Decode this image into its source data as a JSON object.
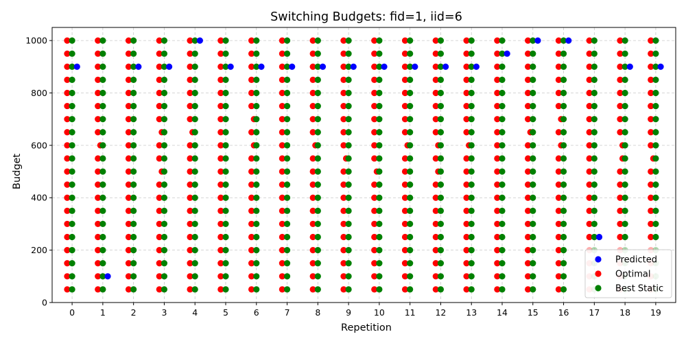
{
  "chart_data": {
    "type": "scatter",
    "title": "Switching Budgets: fid=1, iid=6",
    "xlabel": "Repetition",
    "ylabel": "Budget",
    "xlim": [
      -0.65,
      19.65
    ],
    "ylim": [
      0,
      1050
    ],
    "x_ticks": [
      0,
      1,
      2,
      3,
      4,
      5,
      6,
      7,
      8,
      9,
      10,
      11,
      12,
      13,
      14,
      15,
      16,
      17,
      18,
      19
    ],
    "y_ticks": [
      0,
      200,
      400,
      600,
      800,
      1000
    ],
    "grid": true,
    "legend_position": "lower-right",
    "budget_levels": [
      50,
      100,
      150,
      200,
      250,
      300,
      350,
      400,
      450,
      500,
      550,
      600,
      650,
      700,
      750,
      800,
      850,
      900,
      950,
      1000
    ],
    "series": [
      {
        "name": "Predicted",
        "color": "#0000ff",
        "offset": 0.16,
        "points": [
          [
            0,
            900
          ],
          [
            1,
            100
          ],
          [
            2,
            900
          ],
          [
            3,
            900
          ],
          [
            4,
            1000
          ],
          [
            5,
            900
          ],
          [
            6,
            900
          ],
          [
            7,
            900
          ],
          [
            8,
            900
          ],
          [
            9,
            900
          ],
          [
            10,
            900
          ],
          [
            11,
            900
          ],
          [
            12,
            900
          ],
          [
            13,
            900
          ],
          [
            14,
            950
          ],
          [
            15,
            1000
          ],
          [
            16,
            1000
          ],
          [
            17,
            250
          ],
          [
            18,
            900
          ],
          [
            19,
            900
          ]
        ]
      },
      {
        "name": "Optimal",
        "color": "#ff0000",
        "offset": -0.16,
        "missing": {
          "1": [
            600
          ],
          "3": [
            650,
            500
          ],
          "4": [
            650
          ],
          "6": [
            700,
            600
          ],
          "8": [
            600
          ],
          "9": [
            550
          ],
          "10": [
            500
          ],
          "11": [
            600
          ],
          "12": [
            600,
            500
          ],
          "13": [
            600
          ],
          "15": [
            650
          ],
          "16": [
            700,
            600
          ],
          "18": [
            600,
            550
          ],
          "19": [
            550
          ]
        },
        "extra": [
          [
            1,
            600
          ],
          [
            3,
            650
          ],
          [
            3,
            500
          ],
          [
            4,
            650
          ],
          [
            6,
            700
          ],
          [
            6,
            600
          ],
          [
            8,
            600
          ],
          [
            9,
            550
          ],
          [
            10,
            500
          ],
          [
            11,
            600
          ],
          [
            12,
            600
          ],
          [
            12,
            500
          ],
          [
            13,
            600
          ],
          [
            15,
            650
          ],
          [
            16,
            700
          ],
          [
            16,
            600
          ],
          [
            18,
            600
          ],
          [
            18,
            550
          ],
          [
            19,
            550
          ]
        ]
      },
      {
        "name": "Best Static",
        "color": "#008000",
        "offset": 0.0
      }
    ],
    "faded_region": {
      "x_from": 17,
      "x_to": 19,
      "y_below": 200
    }
  }
}
